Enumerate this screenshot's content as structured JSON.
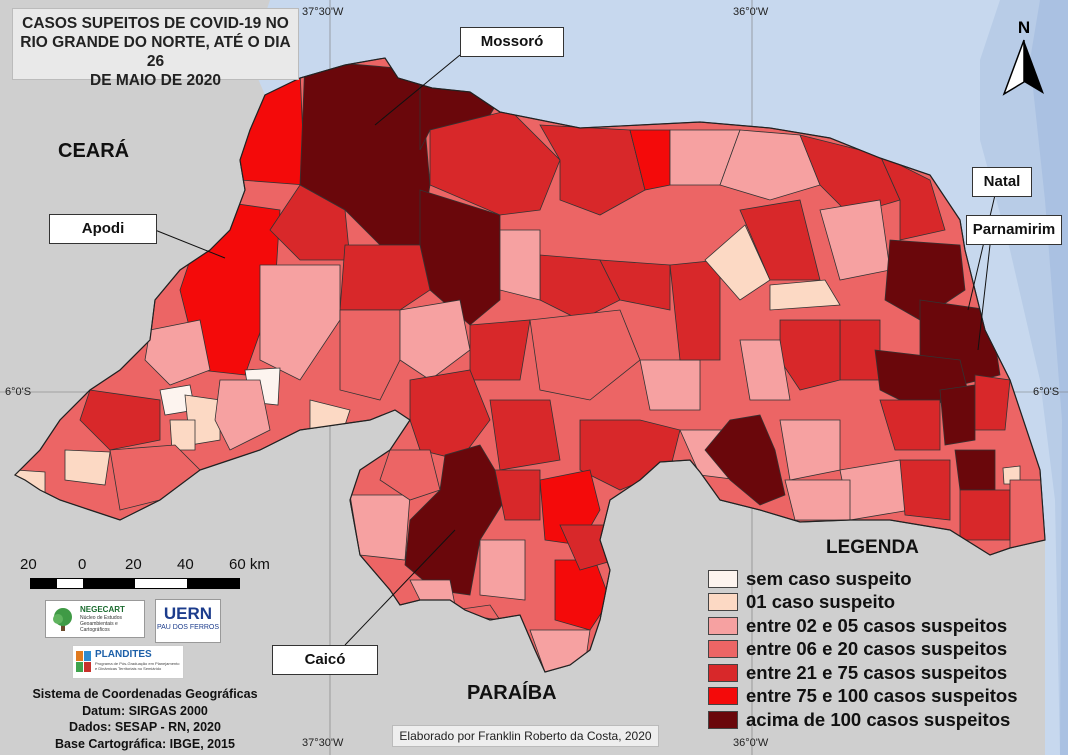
{
  "title": {
    "line1": "CASOS SUPEITOS DE COVID-19 NO",
    "line2": "RIO GRANDE DO NORTE, ATÉ O DIA 26",
    "line3": "DE MAIO DE 2020"
  },
  "neighbors": {
    "west": "CEARÁ",
    "south": "PARAÍBA"
  },
  "callouts": {
    "mossoro": "Mossoró",
    "apodi": "Apodi",
    "natal": "Natal",
    "parnamirim": "Parnamirim",
    "caico": "Caicó"
  },
  "coordinates": {
    "top_left": "37°30'W",
    "top_right": "36°0'W",
    "bottom_left": "37°30'W",
    "bottom_right": "36°0'W",
    "left": "6°0'S",
    "right": "6°0'S"
  },
  "north_arrow": {
    "label": "N",
    "icon": "north-arrow-icon"
  },
  "scale": {
    "labels": [
      "20",
      "0",
      "20",
      "40",
      "60 km"
    ]
  },
  "legend": {
    "title": "LEGENDA",
    "items": [
      {
        "label": "sem caso suspeito",
        "color": "#fdf4ef"
      },
      {
        "label": "01 caso suspeito",
        "color": "#fcd9c4"
      },
      {
        "label": "entre 02 e 05 casos suspeitos",
        "color": "#f6a1a1"
      },
      {
        "label": "entre 06 e 20 casos suspeitos",
        "color": "#ec6565"
      },
      {
        "label": "entre 21 e 75 casos suspeitos",
        "color": "#d8282a"
      },
      {
        "label": "entre 75 e 100 casos suspeitos",
        "color": "#f40a0a"
      },
      {
        "label": "acima de 100 casos suspeitos",
        "color": "#6a070b"
      }
    ]
  },
  "logos": {
    "negecart": "NEGECART",
    "negecart_sub": "Núcleo de Estudos Geoambientais e Cartográficos",
    "uern": "UERN",
    "uern_sub": "PAU DOS FERROS",
    "plandites": "PLANDITES",
    "plandites_sub": "Programa de Pós-Graduação em Planejamento e Dinâmicas Territoriais no Semiárido"
  },
  "info": {
    "line1": "Sistema de Coordenadas Geográficas",
    "line2": "Datum: SIRGAS 2000",
    "line3": "Dados: SESAP - RN, 2020",
    "line4": "Base Cartográfica: IBGE, 2015"
  },
  "credit": "Elaborado por Franklin Roberto da Costa, 2020",
  "colors": {
    "ocean": "#c7d8ee",
    "land_outside": "#cfcfcf"
  }
}
